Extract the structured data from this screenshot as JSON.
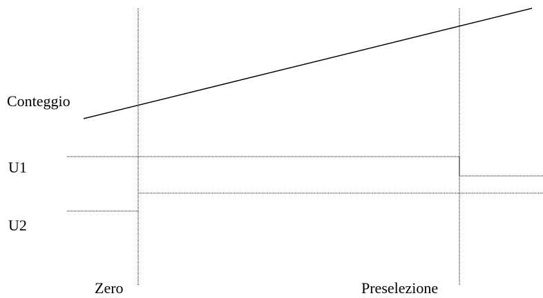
{
  "labels": {
    "count": "Conteggio",
    "u1": "U1",
    "u2": "U2",
    "zero": "Zero",
    "preset": "Preselezione"
  },
  "colors": {
    "line": "#000000",
    "background": "#ffffff"
  }
}
